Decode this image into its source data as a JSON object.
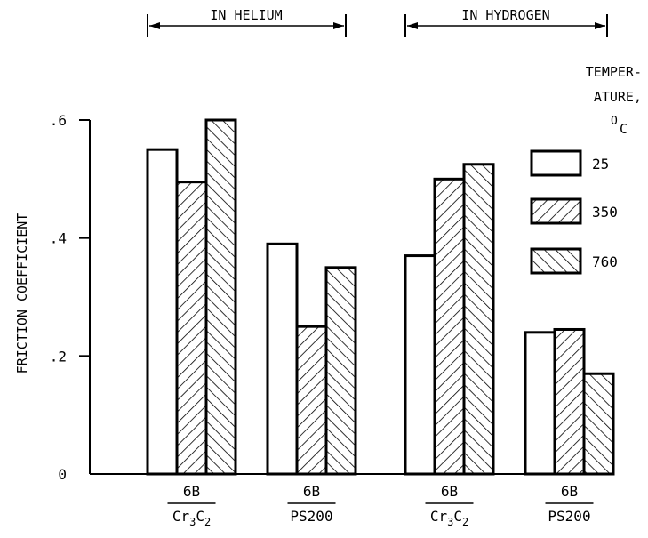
{
  "chart_data": {
    "type": "bar",
    "ylabel": "FRICTION COEFFICIENT",
    "ylim": [
      0,
      0.6
    ],
    "yticks": [
      {
        "value": 0,
        "label": "0"
      },
      {
        "value": 0.2,
        "label": ".2"
      },
      {
        "value": 0.4,
        "label": ".4"
      },
      {
        "value": 0.6,
        "label": ".6"
      }
    ],
    "groups": [
      {
        "label": "IN HELIUM",
        "categories": [
          0,
          1
        ]
      },
      {
        "label": "IN HYDROGEN",
        "categories": [
          2,
          3
        ]
      }
    ],
    "categories": [
      {
        "top": "6B",
        "bottom": "Cr",
        "sub1": "3",
        "mid": "C",
        "sub2": "2"
      },
      {
        "top": "6B",
        "bottom": "PS200",
        "sub1": "",
        "mid": "",
        "sub2": ""
      },
      {
        "top": "6B",
        "bottom": "Cr",
        "sub1": "3",
        "mid": "C",
        "sub2": "2"
      },
      {
        "top": "6B",
        "bottom": "PS200",
        "sub1": "",
        "mid": "",
        "sub2": ""
      }
    ],
    "legend": {
      "title_lines": [
        "TEMPER-",
        "ATURE,"
      ],
      "unit_sup": "O",
      "unit": "C",
      "placement": "right"
    },
    "series": [
      {
        "name": "25",
        "pattern": "none",
        "values": [
          0.55,
          0.39,
          0.37,
          0.24
        ]
      },
      {
        "name": "350",
        "pattern": "forward-hatch",
        "values": [
          0.495,
          0.25,
          0.5,
          0.245
        ]
      },
      {
        "name": "760",
        "pattern": "back-hatch",
        "values": [
          0.6,
          0.35,
          0.525,
          0.17
        ]
      }
    ]
  }
}
